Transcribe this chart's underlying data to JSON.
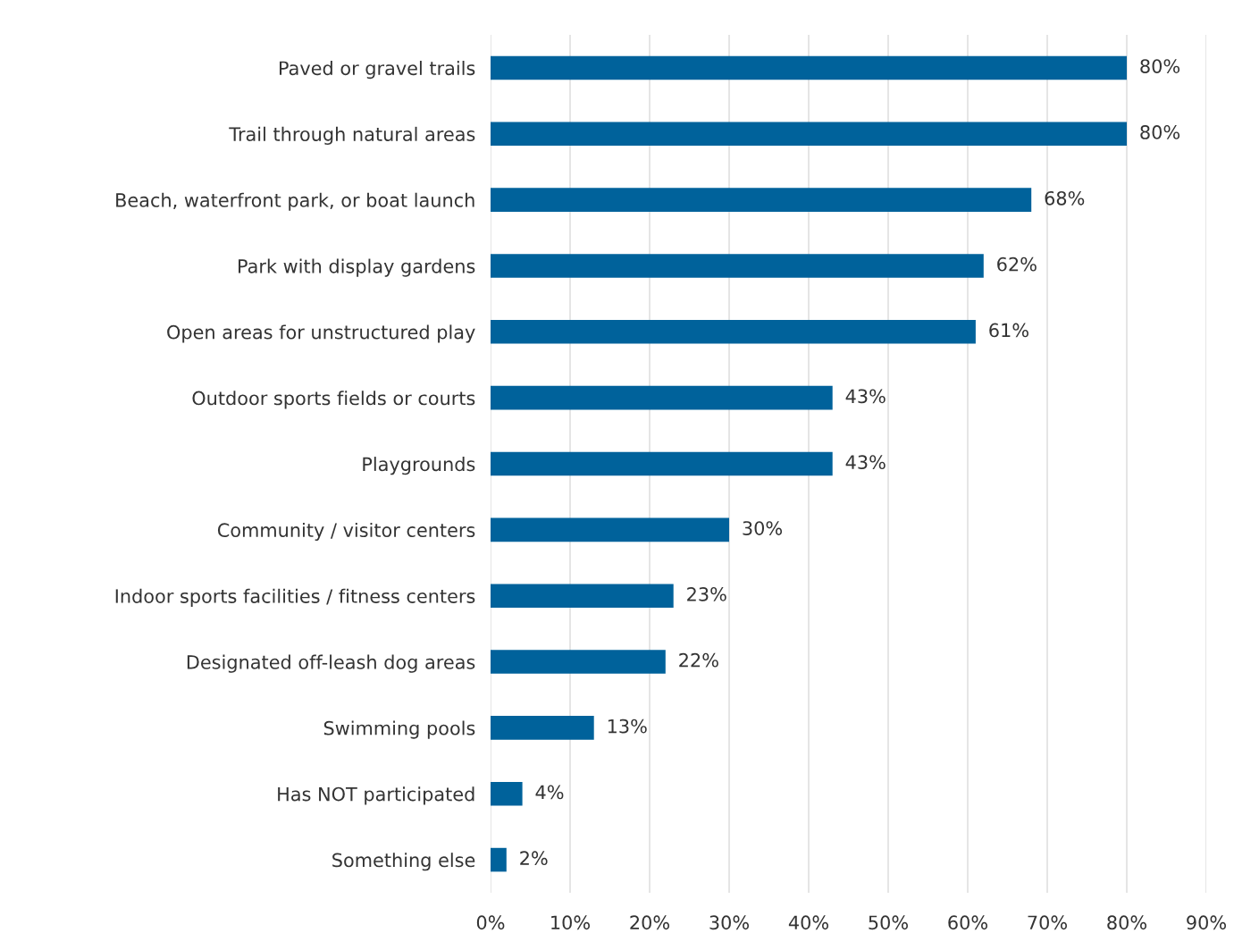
{
  "chart_data": {
    "type": "bar",
    "orientation": "horizontal",
    "categories": [
      "Paved or gravel trails",
      "Trail through natural areas",
      "Beach, waterfront park, or boat launch",
      "Park with display gardens",
      "Open areas for unstructured play",
      "Outdoor sports fields or courts",
      "Playgrounds",
      "Community / visitor centers",
      "Indoor sports facilities / fitness centers",
      "Designated off-leash dog areas",
      "Swimming pools",
      "Has NOT participated",
      "Something else"
    ],
    "values": [
      80,
      80,
      68,
      62,
      61,
      43,
      43,
      30,
      23,
      22,
      13,
      4,
      2
    ],
    "value_labels": [
      "80%",
      "80%",
      "68%",
      "62%",
      "61%",
      "43%",
      "43%",
      "30%",
      "23%",
      "22%",
      "13%",
      "4%",
      "2%"
    ],
    "color": "#00629b",
    "xlim": [
      0,
      90
    ],
    "xticks": [
      {
        "value": 0,
        "label": "0%"
      },
      {
        "value": 10,
        "label": "10%"
      },
      {
        "value": 20,
        "label": "20%"
      },
      {
        "value": 30,
        "label": "30%"
      },
      {
        "value": 40,
        "label": "40%"
      },
      {
        "value": 50,
        "label": "50%"
      },
      {
        "value": 60,
        "label": "60%"
      },
      {
        "value": 70,
        "label": "70%"
      },
      {
        "value": 80,
        "label": "80%"
      },
      {
        "value": 90,
        "label": "90%"
      }
    ],
    "grid": "x",
    "legend": false
  }
}
